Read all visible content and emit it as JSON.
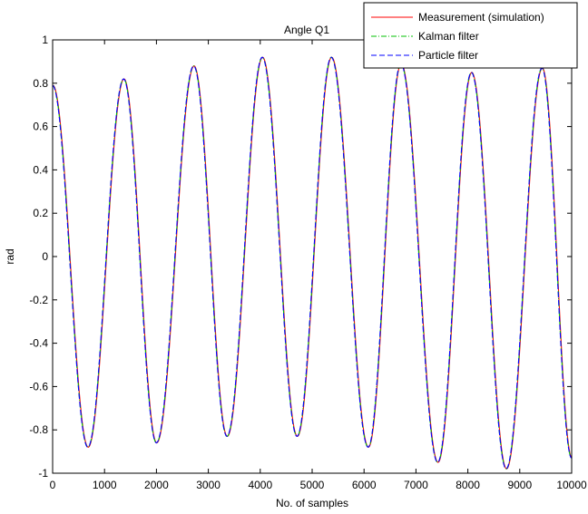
{
  "chart_data": {
    "type": "line",
    "title": "Angle Q1",
    "xlabel": "No. of samples",
    "ylabel": "rad",
    "xlim": [
      0,
      10000
    ],
    "ylim": [
      -1,
      1
    ],
    "xticks": [
      "0",
      "1000",
      "2000",
      "3000",
      "4000",
      "5000",
      "6000",
      "7000",
      "8000",
      "9000",
      "10000"
    ],
    "yticks": [
      "-1",
      "-0.8",
      "-0.6",
      "-0.4",
      "-0.2",
      "0",
      "0.2",
      "0.4",
      "0.6",
      "0.8",
      "1"
    ],
    "grid": false,
    "legend_position": "top-right",
    "series": [
      {
        "name": "Measurement (simulation)",
        "color": "#ff0000",
        "style": "solid"
      },
      {
        "name": "Kalman filter",
        "color": "#00c000",
        "style": "dash-dot"
      },
      {
        "name": "Particle filter",
        "color": "#0000ff",
        "style": "dashed"
      }
    ],
    "x": [
      0,
      680,
      1370,
      2000,
      2720,
      3360,
      4040,
      4710,
      5370,
      6080,
      6710,
      7420,
      8070,
      8740,
      9430,
      10000
    ],
    "y": [
      0.79,
      -0.88,
      0.82,
      -0.86,
      0.88,
      -0.83,
      0.92,
      -0.83,
      0.92,
      -0.88,
      0.89,
      -0.95,
      0.85,
      -0.98,
      0.87,
      -0.93
    ]
  }
}
